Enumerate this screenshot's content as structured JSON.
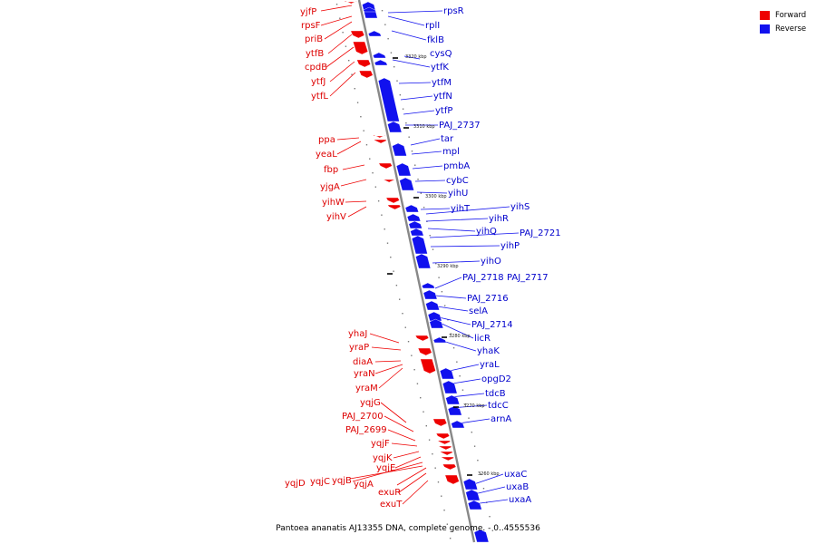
{
  "caption": "Pantoea ananatis AJ13355 DNA, complete genome. - 0..4555536",
  "legend": [
    {
      "label": "Forward",
      "color": "#ee0000"
    },
    {
      "label": "Reverse",
      "color": "#1111ee"
    }
  ],
  "kbp_ticks": [
    "3320 kbp",
    "3310 kbp",
    "3300 kbp",
    "3290 kbp",
    "3280 kbp",
    "3270 kbp",
    "3260 kbp"
  ],
  "genes_reverse": [
    "rpsR",
    "rplI",
    "fklB",
    "cysQ",
    "ytfK",
    "ytfM",
    "ytfN",
    "ytfP",
    "PAJ_2737",
    "tar",
    "mpl",
    "pmbA",
    "cybC",
    "yihU",
    "yihT",
    "yihS",
    "yihR",
    "yihQ",
    "PAJ_2721",
    "yihP",
    "yihO",
    "PAJ_2718",
    "PAJ_2717",
    "PAJ_2716",
    "selA",
    "PAJ_2714",
    "licR",
    "yhaK",
    "yraL",
    "opgD2",
    "tdcB",
    "tdcC",
    "arnA",
    "uxaC",
    "uxaB",
    "uxaA"
  ],
  "genes_forward": [
    "yjfP",
    "rpsF",
    "priB",
    "ytfB",
    "cpdB",
    "ytfJ",
    "ytfL",
    "ppa",
    "yeaL",
    "fbp",
    "yjgA",
    "yihW",
    "yihV",
    "yhaJ",
    "yraP",
    "diaA",
    "yraN",
    "yraM",
    "yqjG",
    "PAJ_2700",
    "PAJ_2699",
    "yqjF",
    "yqjK",
    "yqjE",
    "yqjD",
    "yqjC",
    "yqjB",
    "yqjA",
    "exuR",
    "exuT"
  ]
}
